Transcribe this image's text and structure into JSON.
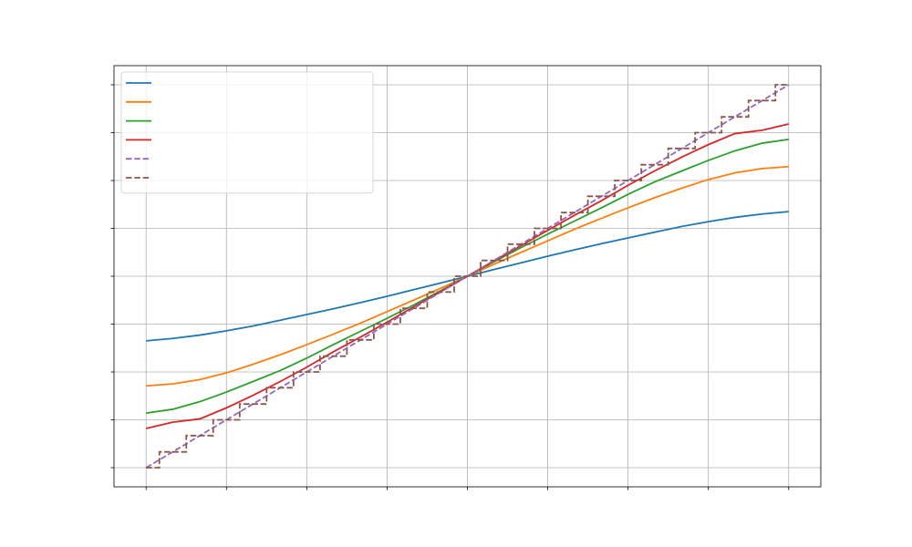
{
  "chart_data": {
    "type": "line",
    "x": [
      -4,
      -3.67,
      -3.33,
      -3,
      -2.67,
      -2.33,
      -2,
      -1.67,
      -1.33,
      -1,
      -0.67,
      -0.33,
      0,
      0.33,
      0.67,
      1,
      1.33,
      1.67,
      2,
      2.33,
      2.67,
      3,
      3.33,
      3.67,
      4
    ],
    "series": [
      {
        "color": "#1f77b4",
        "linestyle": "solid",
        "drawstyle": "default",
        "values": [
          -1.35,
          -1.3,
          -1.23,
          -1.14,
          -1.04,
          -0.92,
          -0.8,
          -0.68,
          -0.55,
          -0.42,
          -0.28,
          -0.14,
          0,
          0.14,
          0.28,
          0.42,
          0.55,
          0.68,
          0.8,
          0.92,
          1.04,
          1.14,
          1.23,
          1.3,
          1.35
        ]
      },
      {
        "color": "#ff7f0e",
        "linestyle": "solid",
        "drawstyle": "default",
        "values": [
          -2.29,
          -2.25,
          -2.16,
          -2.02,
          -1.84,
          -1.64,
          -1.43,
          -1.21,
          -0.98,
          -0.74,
          -0.5,
          -0.25,
          0,
          0.25,
          0.5,
          0.74,
          0.98,
          1.21,
          1.43,
          1.64,
          1.84,
          2.02,
          2.16,
          2.25,
          2.29
        ]
      },
      {
        "color": "#2ca02c",
        "linestyle": "solid",
        "drawstyle": "default",
        "values": [
          -2.86,
          -2.78,
          -2.62,
          -2.42,
          -2.2,
          -1.97,
          -1.71,
          -1.43,
          -1.15,
          -0.88,
          -0.6,
          -0.3,
          0,
          0.3,
          0.6,
          0.88,
          1.15,
          1.43,
          1.71,
          1.97,
          2.2,
          2.42,
          2.62,
          2.78,
          2.86
        ]
      },
      {
        "color": "#d62728",
        "linestyle": "solid",
        "drawstyle": "default",
        "values": [
          -3.18,
          -3.05,
          -2.98,
          -2.75,
          -2.49,
          -2.2,
          -1.9,
          -1.58,
          -1.27,
          -0.96,
          -0.64,
          -0.32,
          0,
          0.32,
          0.64,
          0.96,
          1.27,
          1.58,
          1.9,
          2.2,
          2.49,
          2.75,
          2.98,
          3.05,
          3.18
        ]
      },
      {
        "color": "#9467bd",
        "linestyle": "dashed",
        "drawstyle": "default",
        "values": [
          -4,
          -3.67,
          -3.33,
          -3,
          -2.67,
          -2.33,
          -2,
          -1.67,
          -1.33,
          -1,
          -0.67,
          -0.33,
          0,
          0.33,
          0.67,
          1,
          1.33,
          1.67,
          2,
          2.33,
          2.67,
          3,
          3.33,
          3.67,
          4
        ]
      },
      {
        "color": "#8c564b",
        "linestyle": "dashed",
        "drawstyle": "steps-mid",
        "values": [
          -4,
          -3.67,
          -3.33,
          -3,
          -2.67,
          -2.33,
          -2,
          -1.67,
          -1.33,
          -1,
          -0.67,
          -0.33,
          0,
          0.33,
          0.67,
          1,
          1.33,
          1.67,
          2,
          2.33,
          2.67,
          3,
          3.33,
          3.67,
          4
        ]
      }
    ],
    "xlim": [
      -4.4,
      4.4
    ],
    "xticks": [
      -4,
      -3,
      -2,
      -1,
      0,
      1,
      2,
      3,
      4
    ],
    "ylim": [
      -4.4,
      4.4
    ],
    "yticks": [
      -4,
      -3,
      -2,
      -1,
      0,
      1,
      2,
      3,
      4
    ],
    "grid": true,
    "legend": "upper left"
  }
}
